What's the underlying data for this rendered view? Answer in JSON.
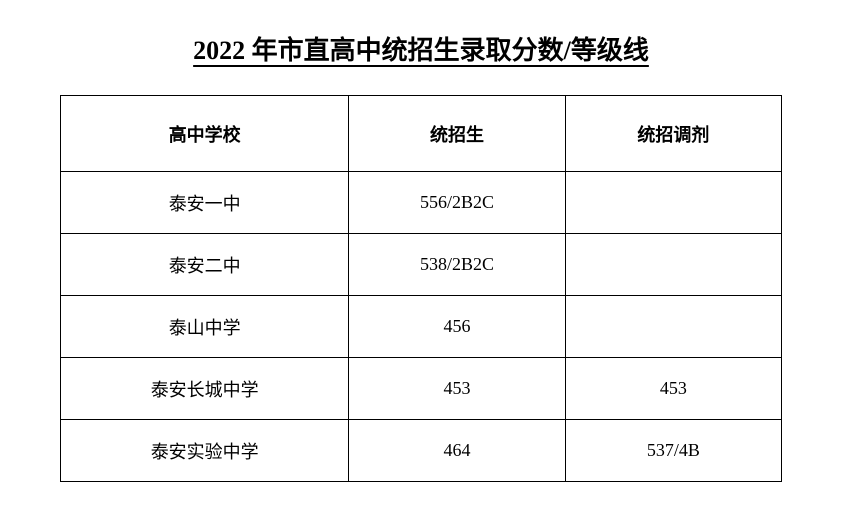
{
  "title": "2022 年市直高中统招生录取分数/等级线",
  "table": {
    "columns": [
      "高中学校",
      "统招生",
      "统招调剂"
    ],
    "rows": [
      [
        "泰安一中",
        "556/2B2C",
        ""
      ],
      [
        "泰安二中",
        "538/2B2C",
        ""
      ],
      [
        "泰山中学",
        "456",
        ""
      ],
      [
        "泰安长城中学",
        "453",
        "453"
      ],
      [
        "泰安实验中学",
        "464",
        "537/4B"
      ]
    ]
  },
  "style": {
    "background_color": "#ffffff",
    "text_color": "#000000",
    "border_color": "#000000",
    "title_fontsize": 26,
    "header_fontsize": 18,
    "cell_fontsize": 18,
    "font_family": "SimSun",
    "header_row_height": 76,
    "data_row_height": 62,
    "column_widths": [
      "40%",
      "30%",
      "30%"
    ]
  }
}
